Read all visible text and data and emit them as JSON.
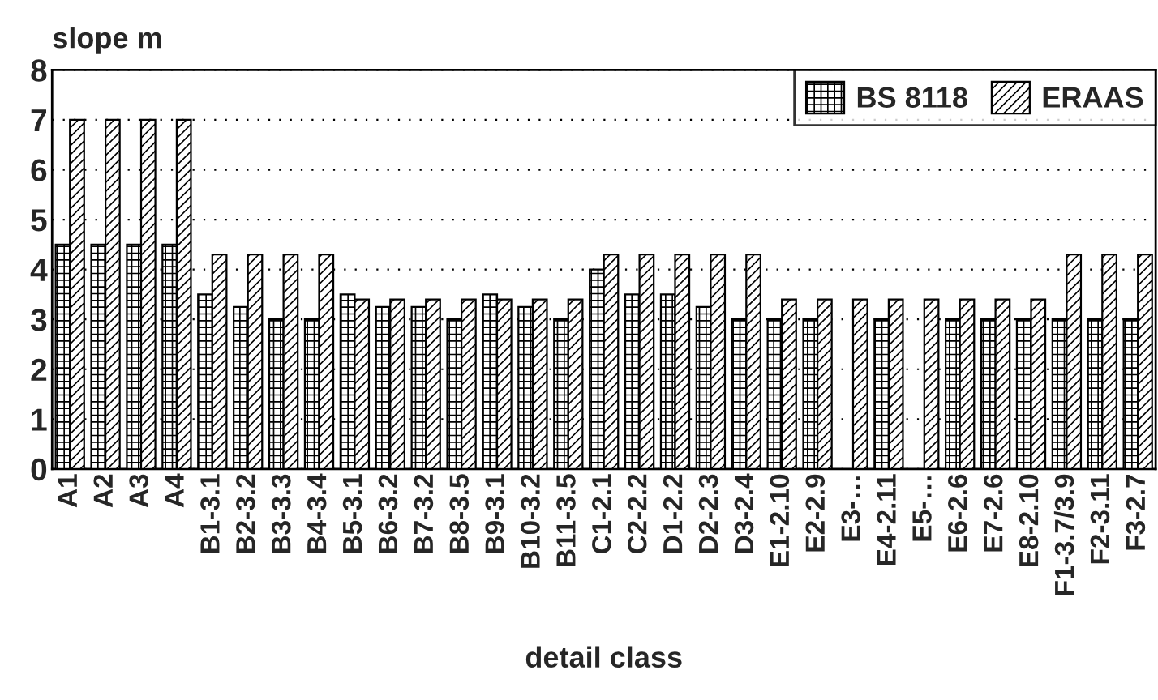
{
  "chart_data": {
    "type": "bar",
    "xlabel": "detail class",
    "ylabel": "slope m",
    "categories": [
      "A1",
      "A2",
      "A3",
      "A4",
      "B1-3.1",
      "B2-3.2",
      "B3-3.3",
      "B4-3.4",
      "B5-3.1",
      "B6-3.2",
      "B7-3.2",
      "B8-3.5",
      "B9-3.1",
      "B10-3.2",
      "B11-3.5",
      "C1-2.1",
      "C2-2.2",
      "D1-2.2",
      "D2-2.3",
      "D3-2.4",
      "E1-2.10",
      "E2-2.9",
      "E3-…",
      "E4-2.11",
      "E5-…",
      "E6-2.6",
      "E7-2.6",
      "E8-2.10",
      "F1-3.7/3.9",
      "F2-3.11",
      "F3-2.7"
    ],
    "series": [
      {
        "name": "BS 8118",
        "color": "#000000",
        "values": [
          4.5,
          4.5,
          4.5,
          4.5,
          3.5,
          3.25,
          3.0,
          3.0,
          3.5,
          3.25,
          3.25,
          3.0,
          3.5,
          3.25,
          3.0,
          4.0,
          3.5,
          3.5,
          3.25,
          3.0,
          3.0,
          3.0,
          null,
          3.0,
          null,
          3.0,
          3.0,
          3.0,
          3.0,
          3.0,
          3.0
        ]
      },
      {
        "name": "ERAAS",
        "color": "#000000",
        "values": [
          7,
          7,
          7,
          7,
          4.3,
          4.3,
          4.3,
          4.3,
          3.4,
          3.4,
          3.4,
          3.4,
          3.4,
          3.4,
          3.4,
          4.3,
          4.3,
          4.3,
          4.3,
          4.3,
          3.4,
          3.4,
          3.4,
          3.4,
          3.4,
          3.4,
          3.4,
          3.4,
          4.3,
          4.3,
          4.3
        ]
      }
    ],
    "ylim": [
      0,
      8
    ],
    "yticks": [
      0,
      1,
      2,
      3,
      4,
      5,
      6,
      7,
      8
    ],
    "grid": "y",
    "legend": "top right"
  }
}
